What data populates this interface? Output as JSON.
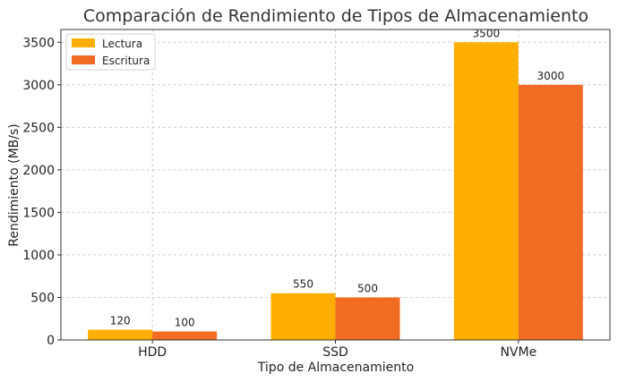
{
  "chart_data": {
    "type": "bar",
    "title": "Comparación de Rendimiento de Tipos de Almacenamiento",
    "xlabel": "Tipo de Almacenamiento",
    "ylabel": "Rendimiento (MB/s)",
    "categories": [
      "HDD",
      "SSD",
      "NVMe"
    ],
    "series": [
      {
        "name": "Lectura",
        "values": [
          120,
          550,
          3500
        ],
        "color": "#FFAE00"
      },
      {
        "name": "Escritura",
        "values": [
          100,
          500,
          3000
        ],
        "color": "#F26B23"
      }
    ],
    "ylim": [
      0,
      3650
    ],
    "yticks": [
      0,
      500,
      1000,
      1500,
      2000,
      2500,
      3000,
      3500
    ],
    "grid": true,
    "legend_position": "top-left"
  }
}
